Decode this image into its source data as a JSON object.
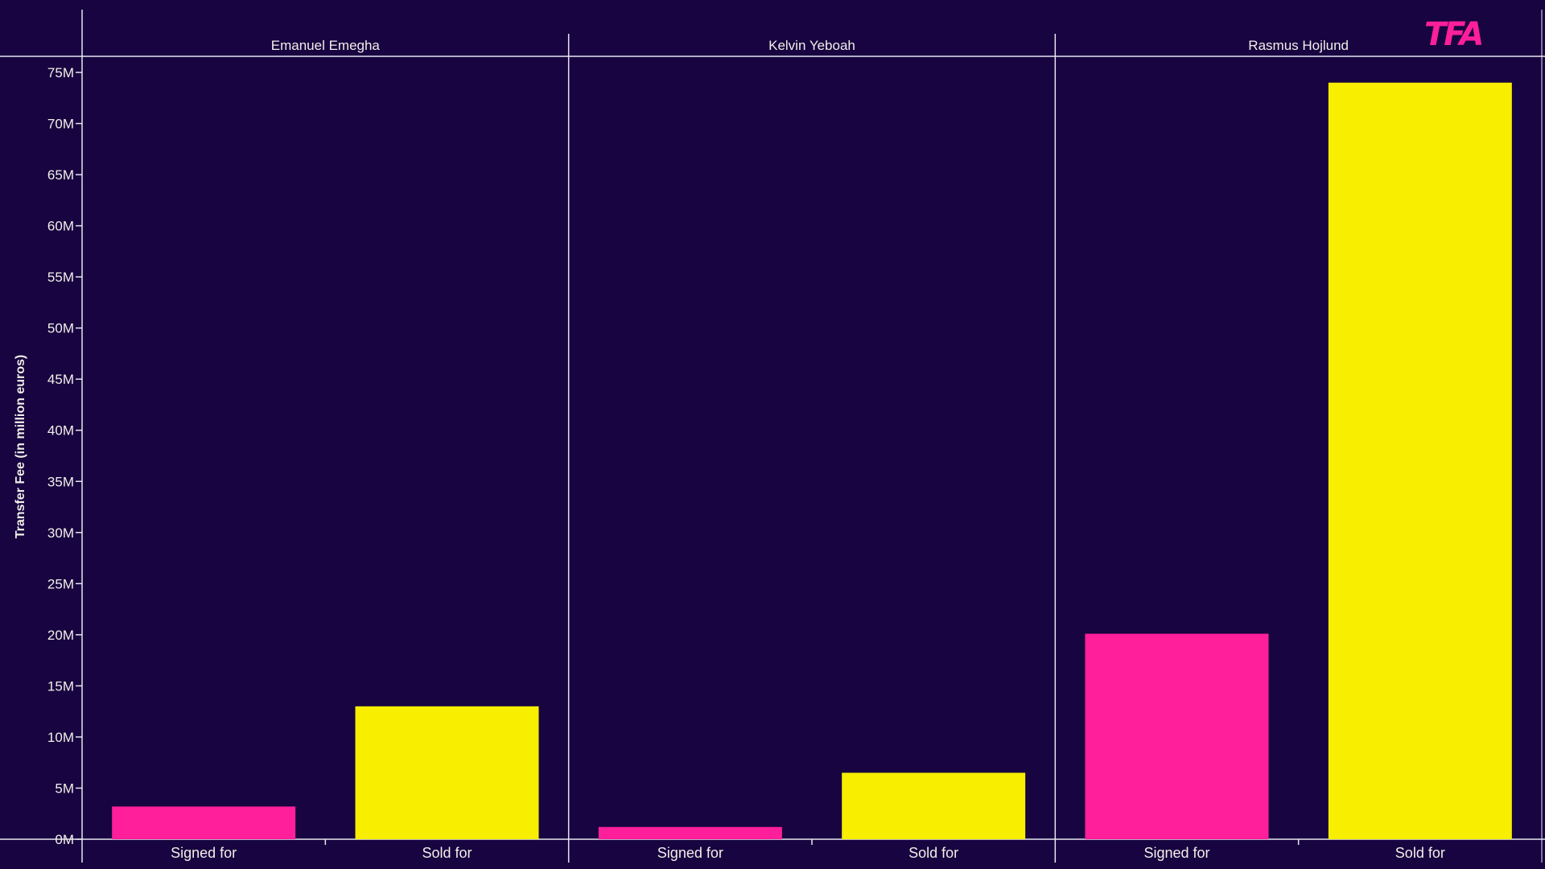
{
  "logo": {
    "text": "TFA",
    "color": "#ff1f9a"
  },
  "colors": {
    "background": "#170440",
    "axis": "#e9e6f0",
    "signed_for": "#ff1f9a",
    "sold_for": "#f7ee00"
  },
  "chart_data": {
    "type": "bar",
    "ylabel": "Transfer Fee (in million euros)",
    "ylim": [
      0,
      77.5
    ],
    "yticks": [
      "0M",
      "5M",
      "10M",
      "15M",
      "20M",
      "25M",
      "30M",
      "35M",
      "40M",
      "45M",
      "50M",
      "55M",
      "60M",
      "65M",
      "70M",
      "75M"
    ],
    "ytick_values": [
      0,
      5,
      10,
      15,
      20,
      25,
      30,
      35,
      40,
      45,
      50,
      55,
      60,
      65,
      70,
      75
    ],
    "grid": false,
    "categories": [
      "Signed for",
      "Sold for"
    ],
    "panels": [
      {
        "name": "Emanuel Emegha",
        "values": [
          3.2,
          13.0
        ]
      },
      {
        "name": "Kelvin Yeboah",
        "values": [
          1.2,
          6.5
        ]
      },
      {
        "name": "Rasmus Hojlund",
        "values": [
          20.1,
          74.0
        ]
      }
    ]
  }
}
